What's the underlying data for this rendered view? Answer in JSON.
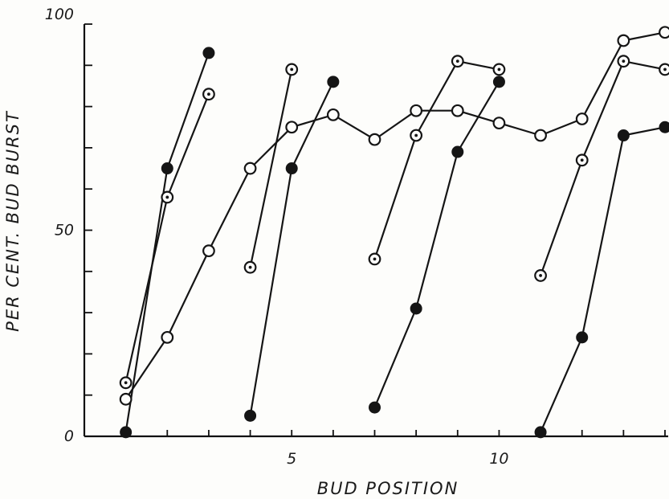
{
  "chart_data": {
    "type": "line",
    "title": "",
    "xlabel": "BUD POSITION",
    "ylabel": "PER CENT. BUD BURST",
    "xlim": [
      0,
      14
    ],
    "ylim": [
      0,
      100
    ],
    "x_tick_labels": [
      {
        "value": 5,
        "label": "5"
      },
      {
        "value": 10,
        "label": "10"
      }
    ],
    "y_tick_labels": [
      {
        "value": 0,
        "label": "0"
      },
      {
        "value": 50,
        "label": "50"
      },
      {
        "value": 100,
        "label": "100"
      }
    ],
    "x_minor_ticks": [
      1,
      2,
      3,
      4,
      5,
      6,
      7,
      8,
      9,
      10,
      11,
      12,
      13,
      14
    ],
    "y_minor_ticks": [
      10,
      20,
      30,
      40,
      60,
      70,
      80,
      90
    ],
    "grid": false,
    "legend": "none",
    "series": [
      {
        "marker": "open",
        "x": [
          1,
          2,
          3,
          4,
          5,
          6,
          7,
          8,
          9,
          10,
          11,
          12,
          13,
          14
        ],
        "y": [
          9,
          24,
          45,
          65,
          75,
          78,
          72,
          79,
          79,
          76,
          73,
          77,
          96,
          98
        ]
      },
      {
        "marker": "filled",
        "x": [
          1,
          2,
          3
        ],
        "y": [
          1,
          65,
          93
        ]
      },
      {
        "marker": "dotted",
        "x": [
          1,
          2,
          3
        ],
        "y": [
          13,
          58,
          83
        ]
      },
      {
        "marker": "dotted",
        "x": [
          4,
          5
        ],
        "y": [
          41,
          89
        ]
      },
      {
        "marker": "filled",
        "x": [
          4,
          5,
          6
        ],
        "y": [
          5,
          65,
          86
        ]
      },
      {
        "marker": "dotted",
        "x": [
          7,
          8,
          9,
          10
        ],
        "y": [
          43,
          73,
          91,
          89
        ]
      },
      {
        "marker": "filled",
        "x": [
          7,
          8,
          9,
          10
        ],
        "y": [
          7,
          31,
          69,
          86
        ]
      },
      {
        "marker": "dotted",
        "x": [
          11,
          12,
          13,
          14
        ],
        "y": [
          39,
          67,
          91,
          89
        ]
      },
      {
        "marker": "filled",
        "x": [
          11,
          12,
          13,
          14
        ],
        "y": [
          1,
          24,
          73,
          75
        ]
      }
    ]
  }
}
